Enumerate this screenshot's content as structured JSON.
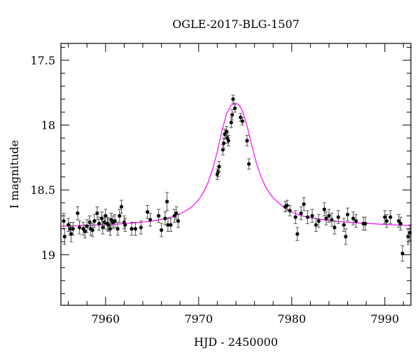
{
  "chart_data": {
    "type": "scatter",
    "title": "OGLE-2017-BLG-1507",
    "xlabel": "HJD - 2450000",
    "ylabel": "I magnitude",
    "xlim": [
      7955.2,
      7992.8
    ],
    "ylim": [
      19.39,
      17.37
    ],
    "y_inverted": true,
    "xticks": [
      7960,
      7970,
      7980,
      7990
    ],
    "xtick_labels": [
      "7960",
      "7970",
      "7980",
      "7990"
    ],
    "yticks": [
      17.5,
      18,
      18.5,
      19
    ],
    "ytick_labels": [
      "17.5",
      "18",
      "18.5",
      "19"
    ],
    "x_minor_step": 2,
    "y_minor_step": 0.1,
    "grid": false,
    "legend": "none",
    "colors": {
      "model": "#ff00ff",
      "points": "#000000",
      "errorbars": "#555555",
      "frame": "#000000"
    },
    "series": [
      {
        "role": "observed",
        "marker": "filled-circle",
        "x": [
          7955.5,
          7955.6,
          7956.0,
          7956.2,
          7956.3,
          7956.5,
          7957.0,
          7957.2,
          7957.6,
          7957.8,
          7958.0,
          7958.3,
          7958.4,
          7958.6,
          7958.8,
          7959.1,
          7959.3,
          7959.6,
          7959.7,
          7959.9,
          7960.0,
          7960.2,
          7960.3,
          7960.5,
          7960.6,
          7960.8,
          7961.0,
          7961.3,
          7961.5,
          7961.7,
          7962.0,
          7962.1,
          7962.8,
          7963.2,
          7963.8,
          7964.5,
          7964.8,
          7965.7,
          7966.0,
          7966.4,
          7966.6,
          7966.7,
          7967.0,
          7967.4,
          7967.6,
          7967.8,
          7972.0,
          7972.1,
          7972.2,
          7972.6,
          7972.7,
          7972.8,
          7973.0,
          7973.1,
          7973.2,
          7973.5,
          7973.6,
          7973.7,
          7973.9,
          7974.5,
          7974.7,
          7975.2,
          7975.4,
          7979.3,
          7979.5,
          7979.8,
          7980.4,
          7980.6,
          7981.0,
          7981.3,
          7981.7,
          7982.2,
          7982.6,
          7982.9,
          7983.5,
          7983.7,
          7984.0,
          7984.3,
          7984.6,
          7985.0,
          7985.6,
          7985.8,
          7986.0,
          7986.6,
          7986.9,
          7987.7,
          7987.9,
          7990.0,
          7990.2,
          7990.6,
          7991.5,
          7991.7,
          7991.9,
          7992.5,
          7992.7
        ],
        "y": [
          18.74,
          18.86,
          18.77,
          18.8,
          18.84,
          18.8,
          18.68,
          18.79,
          18.8,
          18.82,
          18.78,
          18.75,
          18.8,
          18.81,
          18.74,
          18.68,
          18.76,
          18.72,
          18.79,
          18.75,
          18.7,
          18.76,
          18.77,
          18.8,
          18.73,
          18.75,
          18.74,
          18.8,
          18.7,
          18.63,
          18.75,
          18.77,
          18.8,
          18.8,
          18.79,
          18.67,
          18.73,
          18.7,
          18.81,
          18.72,
          18.59,
          18.77,
          18.77,
          18.7,
          18.68,
          18.74,
          18.38,
          18.36,
          18.32,
          18.19,
          18.14,
          18.07,
          18.05,
          18.1,
          18.12,
          17.98,
          17.92,
          17.8,
          17.87,
          17.94,
          17.97,
          18.12,
          18.3,
          18.63,
          18.62,
          18.66,
          18.71,
          18.84,
          18.68,
          18.61,
          18.71,
          18.7,
          18.77,
          18.74,
          18.65,
          18.72,
          18.7,
          18.73,
          18.79,
          18.71,
          18.77,
          18.86,
          18.69,
          18.72,
          18.74,
          18.76,
          18.76,
          18.71,
          18.74,
          18.71,
          18.74,
          18.76,
          18.99,
          18.86,
          18.83
        ],
        "yerr": [
          0.06,
          0.06,
          0.05,
          0.05,
          0.06,
          0.05,
          0.05,
          0.05,
          0.05,
          0.05,
          0.05,
          0.05,
          0.05,
          0.05,
          0.05,
          0.05,
          0.05,
          0.05,
          0.05,
          0.05,
          0.05,
          0.05,
          0.05,
          0.05,
          0.05,
          0.05,
          0.05,
          0.05,
          0.05,
          0.05,
          0.05,
          0.05,
          0.05,
          0.05,
          0.05,
          0.05,
          0.05,
          0.05,
          0.05,
          0.05,
          0.07,
          0.05,
          0.05,
          0.05,
          0.05,
          0.05,
          0.04,
          0.04,
          0.04,
          0.04,
          0.04,
          0.04,
          0.04,
          0.04,
          0.04,
          0.04,
          0.04,
          0.03,
          0.03,
          0.03,
          0.03,
          0.04,
          0.04,
          0.04,
          0.04,
          0.04,
          0.05,
          0.05,
          0.05,
          0.05,
          0.05,
          0.05,
          0.05,
          0.05,
          0.05,
          0.05,
          0.05,
          0.05,
          0.05,
          0.05,
          0.05,
          0.06,
          0.05,
          0.05,
          0.05,
          0.05,
          0.05,
          0.05,
          0.05,
          0.05,
          0.05,
          0.05,
          0.06,
          0.06,
          0.06
        ]
      },
      {
        "role": "model",
        "style": "line",
        "x": [
          7955.2,
          7957,
          7959,
          7961,
          7963,
          7965,
          7966,
          7967,
          7968,
          7969,
          7969.5,
          7970,
          7970.5,
          7971,
          7971.5,
          7972,
          7972.5,
          7973,
          7973.5,
          7973.9,
          7974.3,
          7974.7,
          7975.2,
          7975.7,
          7976.2,
          7976.7,
          7977.2,
          7977.7,
          7978.2,
          7979,
          7980,
          7981,
          7982,
          7984,
          7986,
          7988,
          7990,
          7992.8
        ],
        "y": [
          18.78,
          18.776,
          18.771,
          18.765,
          18.755,
          18.741,
          18.727,
          18.711,
          18.685,
          18.645,
          18.616,
          18.576,
          18.521,
          18.445,
          18.341,
          18.206,
          18.045,
          17.911,
          17.847,
          17.832,
          17.841,
          17.888,
          18.008,
          18.156,
          18.293,
          18.4,
          18.478,
          18.535,
          18.575,
          18.625,
          18.671,
          18.698,
          18.715,
          18.737,
          18.751,
          18.758,
          18.766,
          18.776
        ]
      }
    ]
  }
}
